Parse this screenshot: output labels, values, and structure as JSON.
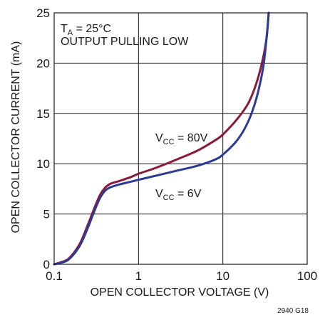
{
  "chart_data": {
    "type": "line",
    "xlabel": "OPEN COLLECTOR VOLTAGE (V)",
    "ylabel": "OPEN COLLECTOR CURRENT (mA)",
    "x_scale": "log",
    "xlim": [
      0.1,
      100
    ],
    "ylim": [
      0,
      25
    ],
    "x_ticks": [
      "0.1",
      "1",
      "10",
      "100"
    ],
    "x_tick_values": [
      0.1,
      1,
      10,
      100
    ],
    "y_ticks": [
      "0",
      "5",
      "10",
      "15",
      "20",
      "25"
    ],
    "y_tick_values": [
      0,
      5,
      10,
      15,
      20,
      25
    ],
    "grid": true,
    "annotation_condition": {
      "base": "T",
      "sub": "A",
      "rest": " = 25°C"
    },
    "annotation_mode": "OUTPUT PULLING LOW",
    "figure_code": "2940 G18",
    "series": [
      {
        "label": {
          "base": "V",
          "sub": "CC",
          "rest": " = 80V"
        },
        "color": "#8b1a3a",
        "x": [
          0.1,
          0.12,
          0.15,
          0.2,
          0.25,
          0.3,
          0.35,
          0.4,
          0.45,
          0.5,
          0.6,
          0.8,
          1,
          1.5,
          2,
          3,
          5,
          8,
          10,
          15,
          20,
          25,
          30,
          33,
          35
        ],
        "y": [
          0,
          0.2,
          0.6,
          2,
          3.9,
          5.6,
          6.9,
          7.6,
          7.95,
          8.1,
          8.3,
          8.65,
          9,
          9.5,
          9.9,
          10.5,
          11.3,
          12.3,
          12.9,
          14.5,
          16,
          18,
          20.5,
          22.5,
          25
        ]
      },
      {
        "label": {
          "base": "V",
          "sub": "CC",
          "rest": " = 6V"
        },
        "color": "#2b3a96",
        "x": [
          0.1,
          0.12,
          0.15,
          0.2,
          0.25,
          0.3,
          0.35,
          0.4,
          0.45,
          0.5,
          0.6,
          0.8,
          1,
          1.5,
          2,
          3,
          5,
          8,
          10,
          15,
          20,
          25,
          30,
          33,
          35
        ],
        "y": [
          0,
          0.15,
          0.5,
          1.8,
          3.6,
          5.3,
          6.6,
          7.3,
          7.6,
          7.75,
          7.95,
          8.2,
          8.4,
          8.75,
          9.0,
          9.35,
          9.8,
          10.4,
          10.9,
          12.4,
          14.2,
          16.5,
          19.5,
          22.5,
          25
        ]
      }
    ]
  }
}
